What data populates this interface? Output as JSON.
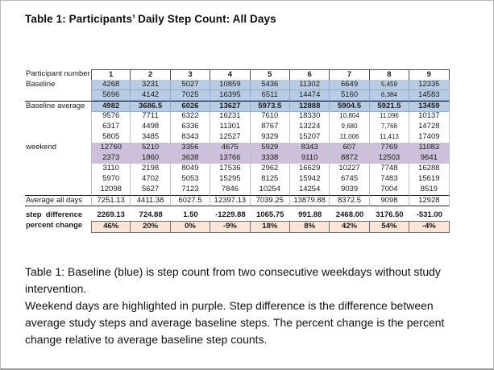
{
  "page": {
    "title": "Table 1: Participants’ Daily Step Count: All Days"
  },
  "colors": {
    "baseline_blue": "#b8cce4",
    "weekend_purple": "#ccc0da",
    "percent_peach": "#fbe5d6"
  },
  "table": {
    "header_label": "Participant number",
    "participants": [
      "1",
      "2",
      "3",
      "4",
      "5",
      "6",
      "7",
      "8",
      "9"
    ],
    "rows": [
      {
        "label": "Baseline",
        "type": "baseline",
        "values": [
          "4268",
          "3231",
          "5027",
          "10859",
          "5436",
          "11302",
          "6649",
          "5,459",
          "12335"
        ]
      },
      {
        "label": "",
        "type": "baseline",
        "values": [
          "5696",
          "4142",
          "7025",
          "16395",
          "6511",
          "14474",
          "5160",
          "6,384",
          "14583"
        ]
      },
      {
        "label": "Baseline average",
        "type": "baseline_average",
        "values": [
          "4982",
          "3686.5",
          "6026",
          "13627",
          "5973.5",
          "12888",
          "5904.5",
          "5921.5",
          "13459"
        ]
      },
      {
        "label": "",
        "type": "study",
        "values": [
          "9576",
          "7711",
          "6322",
          "16231",
          "7610",
          "18330",
          "10,804",
          "11,096",
          "10137"
        ]
      },
      {
        "label": "",
        "type": "study",
        "values": [
          "6317",
          "4498",
          "6336",
          "11301",
          "8767",
          "13224",
          "9,680",
          "7,768",
          "14728"
        ]
      },
      {
        "label": "",
        "type": "study",
        "values": [
          "5805",
          "3485",
          "8343",
          "12527",
          "9329",
          "15207",
          "11,006",
          "11,413",
          "17409"
        ]
      },
      {
        "label": "weekend",
        "type": "weekend",
        "values": [
          "12760",
          "5210",
          "3356",
          "4675",
          "5929",
          "8343",
          "607",
          "7769",
          "11083"
        ]
      },
      {
        "label": "",
        "type": "weekend",
        "values": [
          "2373",
          "1860",
          "3638",
          "13766",
          "3338",
          "9110",
          "8872",
          "12503",
          "9641"
        ]
      },
      {
        "label": "",
        "type": "study",
        "values": [
          "3110",
          "2198",
          "8049",
          "17536",
          "2962",
          "16629",
          "10227",
          "7748",
          "16288"
        ]
      },
      {
        "label": "",
        "type": "study",
        "values": [
          "5970",
          "4702",
          "5053",
          "15295",
          "8125",
          "15942",
          "6745",
          "7483",
          "15619"
        ]
      },
      {
        "label": "",
        "type": "study",
        "values": [
          "12098",
          "5627",
          "7123",
          "7846",
          "10254",
          "14254",
          "9039",
          "7004",
          "8519"
        ]
      },
      {
        "label": "Average all days",
        "type": "average",
        "values": [
          "7251.13",
          "4411.38",
          "6027.5",
          "12397.13",
          "7039.25",
          "13879.88",
          "8372.5",
          "9098",
          "12928"
        ]
      }
    ],
    "step_difference": {
      "label": "step  difference",
      "values": [
        "2269.13",
        "724.88",
        "1.50",
        "-1229.88",
        "1065.75",
        "991.88",
        "2468.00",
        "3176.50",
        "-531.00"
      ]
    },
    "percent_change": {
      "label": "percent change",
      "values": [
        "46%",
        "20%",
        "0%",
        "-9%",
        "18%",
        "8%",
        "42%",
        "54%",
        "-4%"
      ]
    }
  },
  "caption": {
    "p1": "Table 1: Baseline (blue) is step count from two consecutive weekdays without study intervention.",
    "p2": "Weekend days are highlighted in purple. Step difference is the difference between average study steps and average baseline steps. The percent change is the percent change relative to average baseline step counts."
  }
}
